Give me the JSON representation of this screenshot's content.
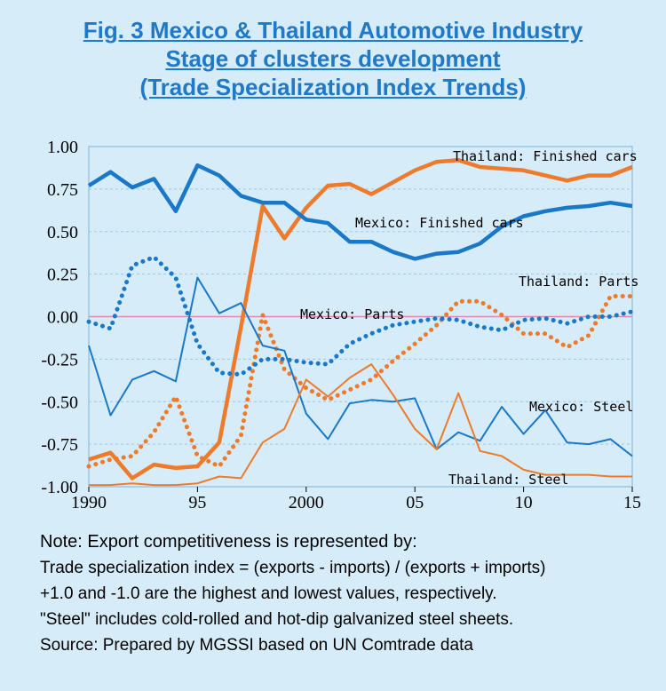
{
  "title": {
    "line1": "Fig. 3 Mexico & Thailand Automotive Industry",
    "line2": "Stage of clusters development",
    "line3": "(Trade Specialization Index Trends)"
  },
  "colors": {
    "background": "#d6ecf9",
    "title": "#1f78c8",
    "mexico": "#1a78c8",
    "thailand": "#ee7a2b",
    "zero_line": "#d98cae",
    "grid": "#9cc6e6"
  },
  "chart_data": {
    "type": "line",
    "ylim": [
      -1.0,
      1.0
    ],
    "xlim": [
      1990,
      2015
    ],
    "y_ticks": [
      "1.00",
      "0.75",
      "0.50",
      "0.25",
      "0.00",
      "-0.25",
      "-0.50",
      "-0.75",
      "-1.00"
    ],
    "y_tick_values": [
      1.0,
      0.75,
      0.5,
      0.25,
      0.0,
      -0.25,
      -0.5,
      -0.75,
      -1.0
    ],
    "x_ticks": [
      "1990",
      "95",
      "2000",
      "05",
      "10",
      "15"
    ],
    "x_tick_values": [
      1990,
      1995,
      2000,
      2005,
      2010,
      2015
    ],
    "grid": true,
    "zero_line": true,
    "x": [
      1990,
      1991,
      1992,
      1993,
      1994,
      1995,
      1996,
      1997,
      1998,
      1999,
      2000,
      2001,
      2002,
      2003,
      2004,
      2005,
      2006,
      2007,
      2008,
      2009,
      2010,
      2011,
      2012,
      2013,
      2014,
      2015
    ],
    "series": [
      {
        "name": "Thailand: Finished cars",
        "color": "#ee7a2b",
        "style": "solid",
        "width": "thick",
        "values": [
          -0.84,
          -0.8,
          -0.95,
          -0.87,
          -0.89,
          -0.88,
          -0.74,
          -0.06,
          0.65,
          0.46,
          0.64,
          0.77,
          0.78,
          0.72,
          0.79,
          0.86,
          0.91,
          0.92,
          0.88,
          0.87,
          0.86,
          0.83,
          0.8,
          0.83,
          0.83,
          0.88
        ]
      },
      {
        "name": "Mexico: Finished cars",
        "color": "#1a78c8",
        "style": "solid",
        "width": "thick",
        "values": [
          0.77,
          0.85,
          0.76,
          0.81,
          0.62,
          0.89,
          0.83,
          0.71,
          0.67,
          0.67,
          0.57,
          0.55,
          0.44,
          0.44,
          0.38,
          0.34,
          0.37,
          0.38,
          0.43,
          0.53,
          0.59,
          0.62,
          0.64,
          0.65,
          0.67,
          0.65
        ]
      },
      {
        "name": "Thailand: Parts",
        "color": "#ee7a2b",
        "style": "dotted",
        "width": "thick",
        "values": [
          -0.88,
          -0.84,
          -0.82,
          -0.68,
          -0.47,
          -0.82,
          -0.88,
          -0.7,
          0.01,
          -0.31,
          -0.42,
          -0.49,
          -0.43,
          -0.37,
          -0.26,
          -0.16,
          -0.05,
          0.09,
          0.09,
          0.01,
          -0.1,
          -0.1,
          -0.18,
          -0.11,
          0.12,
          0.12
        ]
      },
      {
        "name": "Mexico: Parts",
        "color": "#1a78c8",
        "style": "dotted",
        "width": "thick",
        "values": [
          -0.03,
          -0.07,
          0.3,
          0.35,
          0.23,
          -0.16,
          -0.33,
          -0.34,
          -0.25,
          -0.25,
          -0.27,
          -0.28,
          -0.16,
          -0.1,
          -0.05,
          -0.03,
          -0.01,
          -0.02,
          -0.06,
          -0.08,
          -0.02,
          -0.01,
          -0.04,
          0.0,
          0.0,
          0.03
        ]
      },
      {
        "name": "Mexico: Steel",
        "color": "#1a78c8",
        "style": "solid",
        "width": "thin",
        "values": [
          -0.17,
          -0.58,
          -0.37,
          -0.32,
          -0.38,
          0.23,
          0.02,
          0.08,
          -0.17,
          -0.2,
          -0.57,
          -0.72,
          -0.51,
          -0.49,
          -0.5,
          -0.48,
          -0.78,
          -0.68,
          -0.73,
          -0.53,
          -0.69,
          -0.55,
          -0.74,
          -0.75,
          -0.72,
          -0.82
        ]
      },
      {
        "name": "Thailand: Steel",
        "color": "#ee7a2b",
        "style": "solid",
        "width": "thin",
        "values": [
          -0.99,
          -0.99,
          -0.98,
          -0.99,
          -0.99,
          -0.98,
          -0.94,
          -0.95,
          -0.74,
          -0.66,
          -0.37,
          -0.47,
          -0.36,
          -0.28,
          -0.46,
          -0.66,
          -0.78,
          -0.45,
          -0.79,
          -0.82,
          -0.9,
          -0.93,
          -0.93,
          -0.93,
          -0.94,
          -0.94
        ]
      }
    ],
    "series_labels": [
      "Thailand: Finished cars",
      "Mexico: Finished cars",
      "Thailand: Parts",
      "Mexico: Parts",
      "Mexico: Steel",
      "Thailand: Steel"
    ]
  },
  "notes": {
    "line1": "Note: Export competitiveness is represented by:",
    "line2": "Trade specialization index = (exports - imports) / (exports + imports)",
    "line3": "+1.0 and -1.0 are the highest and lowest values, respectively.",
    "line4": "\"Steel\" includes cold-rolled and hot-dip galvanized steel sheets.",
    "line5": "Source: Prepared by MGSSI based on UN Comtrade data"
  }
}
